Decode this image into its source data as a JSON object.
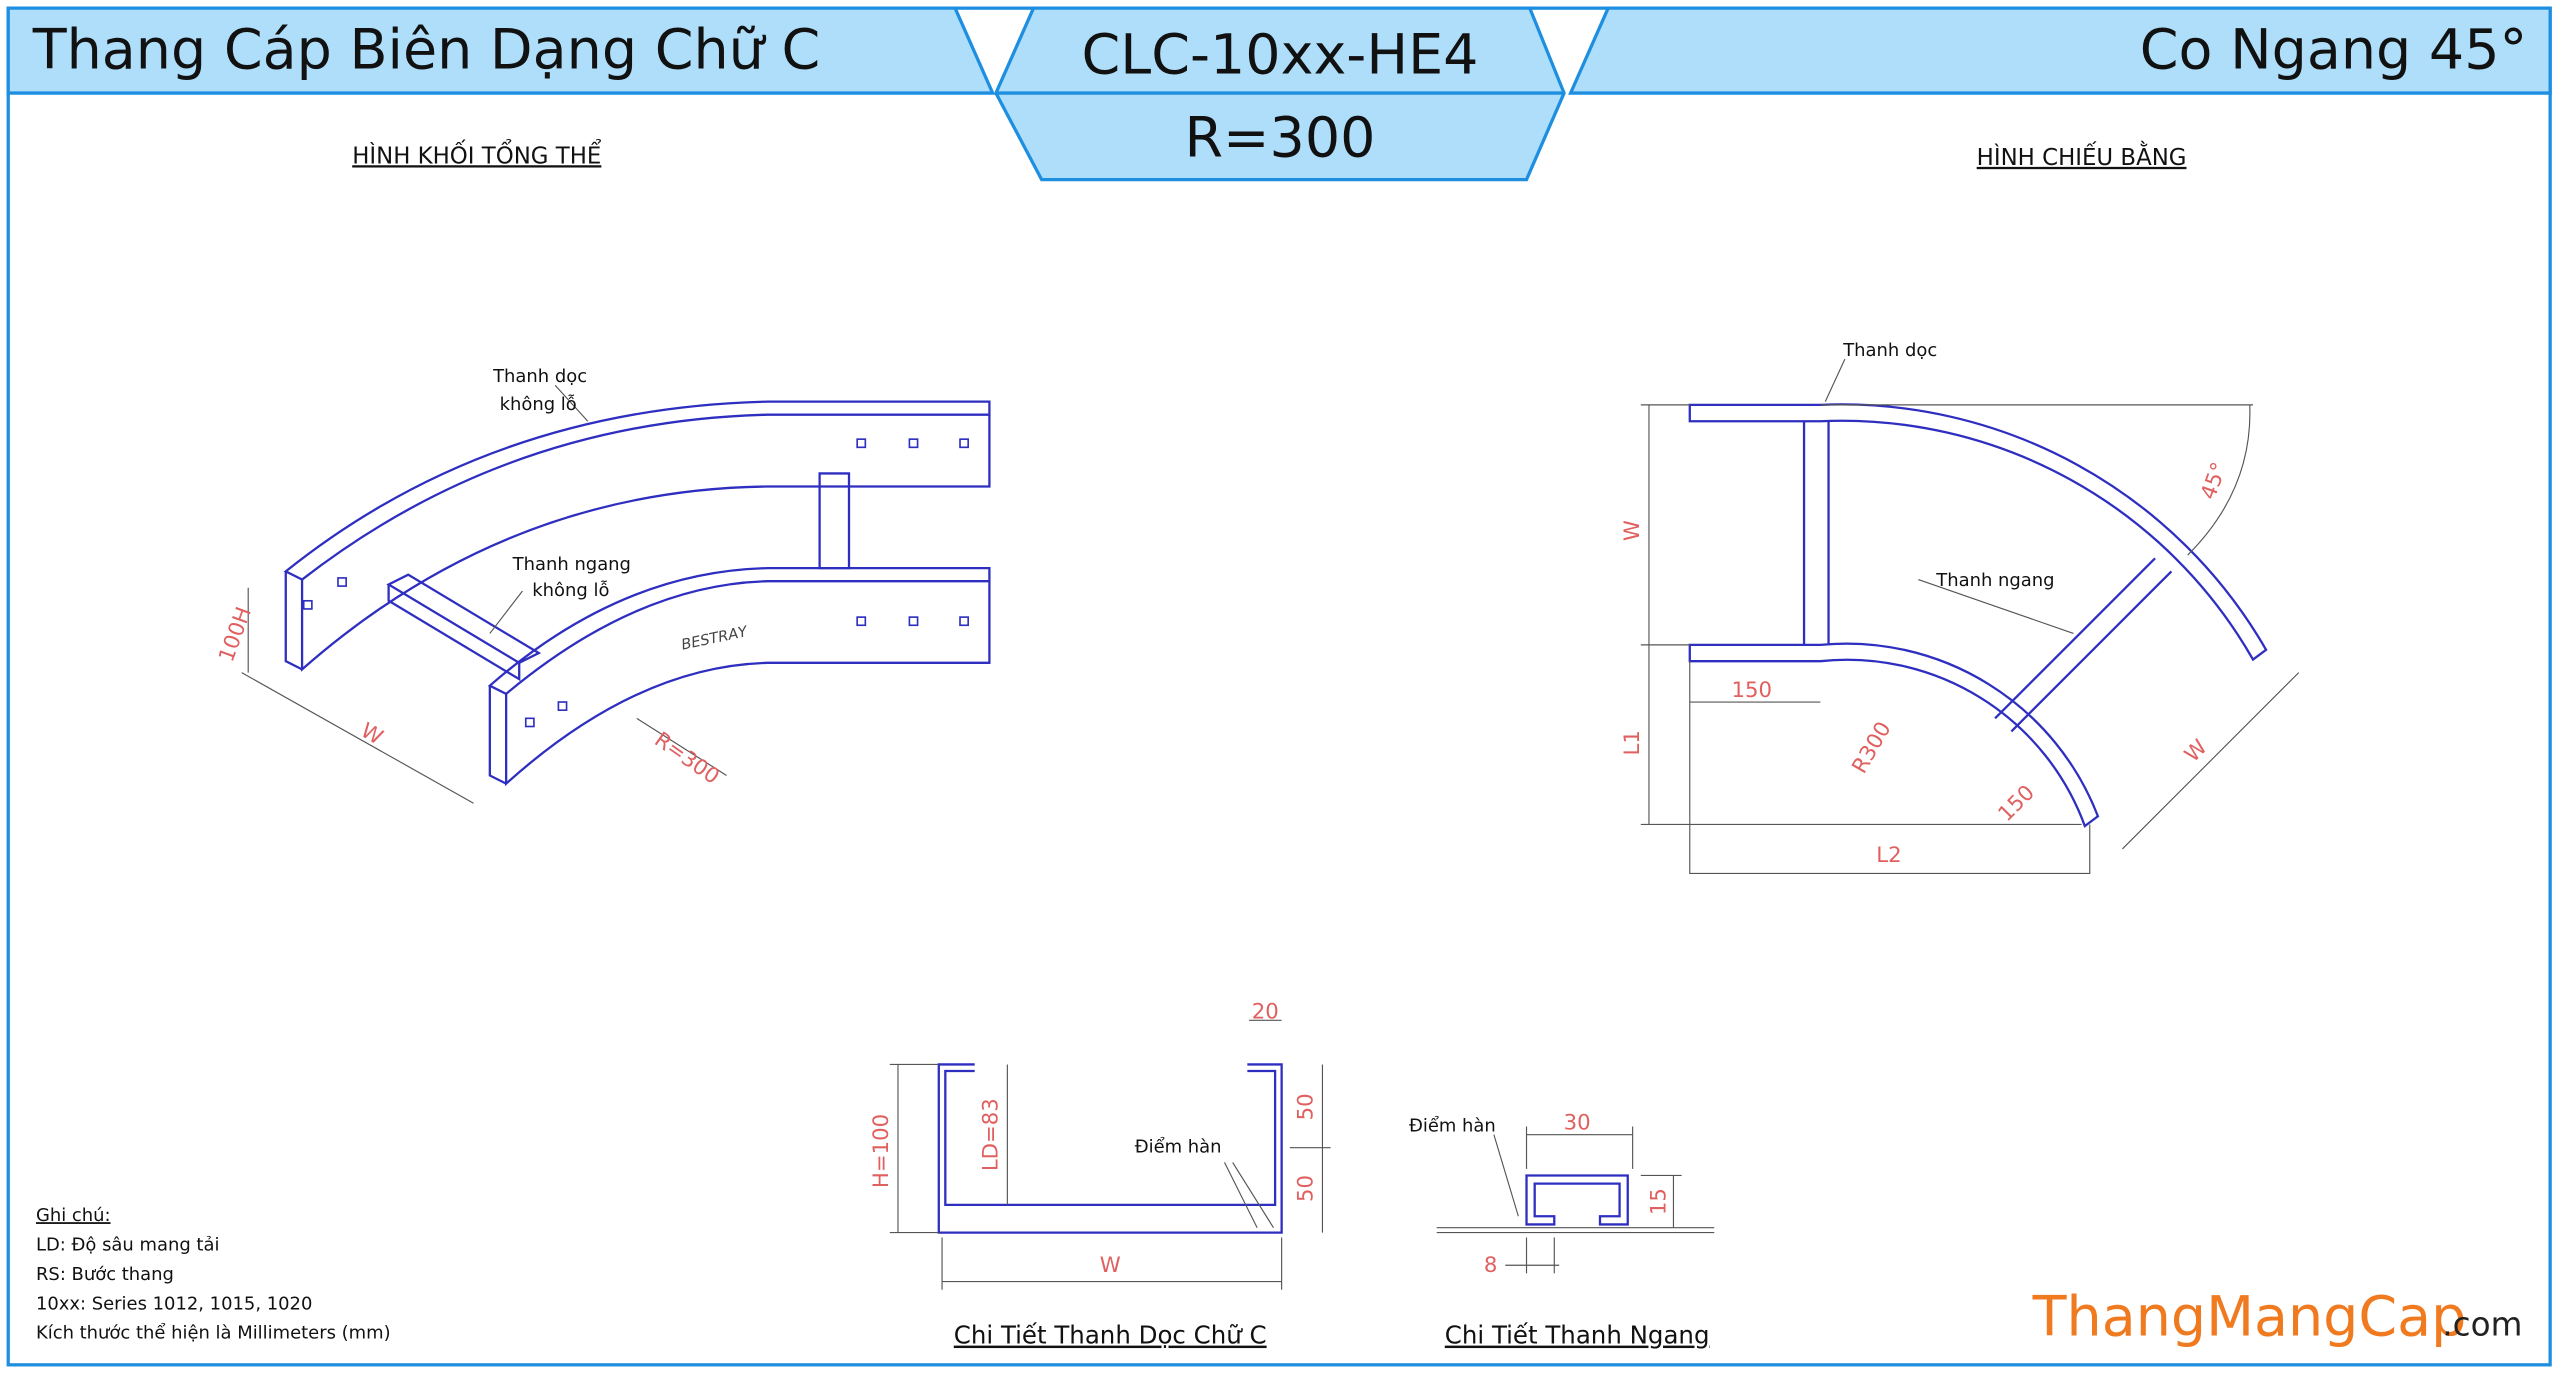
{
  "header": {
    "left": "Thang Cáp Biên Dạng Chữ C",
    "code": "CLC-10xx-HE4",
    "radius": "R=300",
    "right": "Co Ngang 45°"
  },
  "iso_view": {
    "title": "HÌNH KHỐI TỔNG THỂ",
    "labels": [
      "Thanh dọc",
      "không lỗ",
      "Thanh ngang",
      "không lỗ",
      "100H",
      "W",
      "R=300",
      "BESTRAY"
    ]
  },
  "plan_view": {
    "title": "HÌNH CHIẾU BẰNG",
    "labels": [
      "Thanh dọc",
      "Thanh ngang",
      "W",
      "L1",
      "150",
      "R300",
      "150",
      "L2",
      "45°",
      "W"
    ]
  },
  "side_rail_detail": {
    "title": "Chi Tiết Thanh Dọc Chữ C",
    "labels": [
      "20",
      "H=100",
      "LD=83",
      "50",
      "50",
      "Điểm hàn",
      "W"
    ]
  },
  "rung_detail": {
    "title": "Chi Tiết Thanh Ngang",
    "labels": [
      "Điểm hàn",
      "30",
      "15",
      "8"
    ]
  },
  "notes": {
    "title": "Ghi chú:",
    "items": [
      "LD: Độ sâu mang tải",
      "RS: Bước thang",
      "10xx: Series 1012, 1015, 1020",
      "Kích thước thể hiện là Millimeters (mm)"
    ]
  },
  "brand": {
    "name": "ThangMangCap",
    "domain": ".com"
  }
}
